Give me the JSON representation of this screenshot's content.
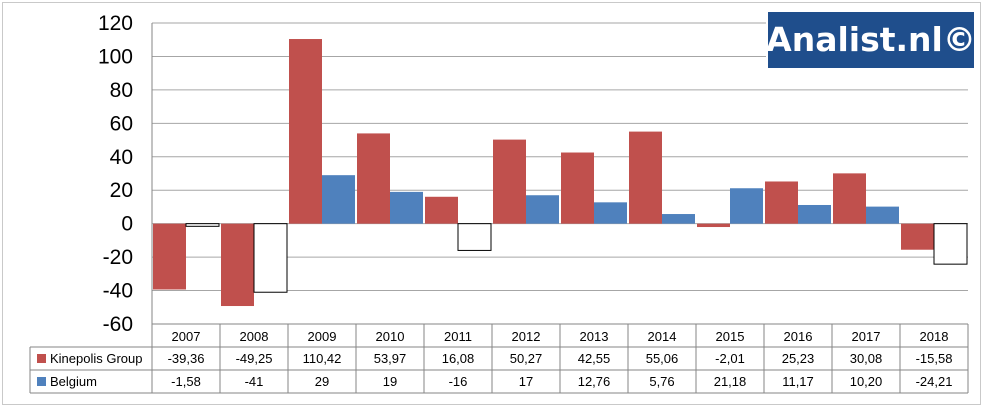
{
  "chart_data": {
    "type": "bar",
    "categories": [
      "2007",
      "2008",
      "2009",
      "2010",
      "2011",
      "2012",
      "2013",
      "2014",
      "2015",
      "2016",
      "2017",
      "2018"
    ],
    "series": [
      {
        "name": "Kinepolis Group",
        "color": "#c0504d",
        "values": [
          -39.36,
          -49.25,
          110.42,
          53.97,
          16.08,
          50.27,
          42.55,
          55.06,
          -2.01,
          25.23,
          30.08,
          -15.58
        ],
        "labels": [
          "-39,36",
          "-49,25",
          "110,42",
          "53,97",
          "16,08",
          "50,27",
          "42,55",
          "55,06",
          "-2,01",
          "25,23",
          "30,08",
          "-15,58"
        ],
        "negative_fill": "#c0504d"
      },
      {
        "name": "Belgium",
        "color": "#4f81bd",
        "values": [
          -1.58,
          -41,
          29,
          19,
          -16,
          17,
          12.76,
          5.76,
          21.18,
          11.17,
          10.2,
          -24.21
        ],
        "labels": [
          "-1,58",
          "-41",
          "29",
          "19",
          "-16",
          "17",
          "12,76",
          "5,76",
          "21,18",
          "11,17",
          "10,20",
          "-24,21"
        ],
        "negative_fill": "#ffffff"
      }
    ],
    "ylim": [
      -60,
      120
    ],
    "yticks": [
      "-60",
      "-40",
      "-20",
      "0",
      "20",
      "40",
      "60",
      "80",
      "100",
      "120"
    ],
    "grid": true,
    "data_table": true
  },
  "watermark": {
    "text": "Analist.nl©",
    "background": "#1f4e8c"
  }
}
